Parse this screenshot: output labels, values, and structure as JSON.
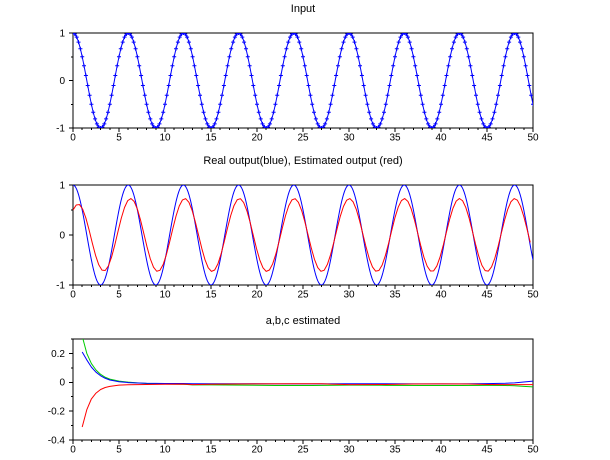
{
  "window": {
    "background": "#ffffff",
    "frame_color": "#000000",
    "text_color": "#000000"
  },
  "chart_data": [
    {
      "type": "line",
      "title": "Input",
      "xlabel": "",
      "ylabel": "",
      "xlim": [
        0,
        50
      ],
      "ylim": [
        -1,
        1
      ],
      "xticks": [
        0,
        5,
        10,
        15,
        20,
        25,
        30,
        35,
        40,
        45,
        50
      ],
      "yticks": [
        1,
        0,
        -1
      ],
      "x_minor_step": 1,
      "y_minor_step": 0.5,
      "grid": false,
      "legend": "none",
      "series": [
        {
          "name": "input-signal",
          "color": "#0000ff",
          "line_width": 1,
          "marker": "+",
          "marker_step": 0.2,
          "sample_step": 0.1,
          "model": {
            "kind": "cosine",
            "amplitude": 1,
            "period": 6,
            "phase": 0,
            "offset": 0
          },
          "description": "cosine wave, amplitude 1, period 6, plotted with dense + markers"
        }
      ]
    },
    {
      "type": "line",
      "title": "Real output(blue), Estimated output (red)",
      "xlabel": "",
      "ylabel": "",
      "xlim": [
        0,
        50
      ],
      "ylim": [
        -1,
        1
      ],
      "xticks": [
        0,
        5,
        10,
        15,
        20,
        25,
        30,
        35,
        40,
        45,
        50
      ],
      "yticks": [
        1,
        0,
        -1
      ],
      "x_minor_step": 1,
      "y_minor_step": 0.5,
      "grid": false,
      "legend": "none",
      "series": [
        {
          "name": "real-output",
          "color": "#0000ff",
          "line_width": 1,
          "marker": "none",
          "sample_step": 0.1,
          "model": {
            "kind": "cosine",
            "amplitude": 1,
            "period": 6,
            "phase": 0,
            "offset": 0
          },
          "description": "real output: cosine, amplitude 1, period 6"
        },
        {
          "name": "estimated-output",
          "color": "#ff0000",
          "line_width": 1,
          "marker": "none",
          "sample_step": 0.35,
          "model": {
            "kind": "transient-cosine",
            "A": 0.73,
            "B": 0.17,
            "tau_amp": 1.2,
            "L": 0.45,
            "tau_lag": 12,
            "period": 6
          },
          "description": "estimated output: starts at 0.5, converges to cosine of amplitude 0.73 with small decaying phase lag"
        }
      ]
    },
    {
      "type": "line",
      "title": "a,b,c estimated",
      "xlabel": "",
      "ylabel": "",
      "xlim": [
        0,
        50
      ],
      "ylim": [
        -0.4,
        0.3
      ],
      "xticks": [
        0,
        5,
        10,
        15,
        20,
        25,
        30,
        35,
        40,
        45,
        50
      ],
      "yticks": [
        0.2,
        0,
        -0.2,
        -0.4
      ],
      "x_minor_step": 1,
      "y_minor_step": 0.1,
      "grid": false,
      "legend": "none",
      "series": [
        {
          "name": "estimate-green",
          "color": "#00cc00",
          "line_width": 1,
          "marker": "none",
          "points": [
            [
              1,
              0.32
            ],
            [
              1.5,
              0.2
            ],
            [
              2,
              0.13
            ],
            [
              2.5,
              0.085
            ],
            [
              3,
              0.055
            ],
            [
              3.5,
              0.035
            ],
            [
              4,
              0.022
            ],
            [
              5,
              0.008
            ],
            [
              6,
              0.001
            ],
            [
              7,
              -0.004
            ],
            [
              8,
              -0.008
            ],
            [
              10,
              -0.012
            ],
            [
              12,
              -0.014
            ],
            [
              13,
              -0.018
            ],
            [
              15,
              -0.018
            ],
            [
              18,
              -0.02
            ],
            [
              22,
              -0.022
            ],
            [
              26,
              -0.022
            ],
            [
              30,
              -0.02
            ],
            [
              34,
              -0.021
            ],
            [
              38,
              -0.022
            ],
            [
              42,
              -0.022
            ],
            [
              45,
              -0.021
            ],
            [
              47,
              -0.022
            ],
            [
              48,
              -0.024
            ],
            [
              49,
              -0.028
            ],
            [
              50,
              -0.032
            ]
          ],
          "description": "parameter estimate starting near 0.3 and converging to about -0.02"
        },
        {
          "name": "estimate-blue",
          "color": "#0000ff",
          "line_width": 1,
          "marker": "none",
          "points": [
            [
              1,
              0.21
            ],
            [
              1.5,
              0.155
            ],
            [
              2,
              0.105
            ],
            [
              2.5,
              0.07
            ],
            [
              3,
              0.045
            ],
            [
              3.5,
              0.028
            ],
            [
              4,
              0.016
            ],
            [
              5,
              0.004
            ],
            [
              6,
              -0.002
            ],
            [
              7,
              -0.005
            ],
            [
              8,
              -0.007
            ],
            [
              10,
              -0.008
            ],
            [
              12,
              -0.008
            ],
            [
              13,
              -0.01
            ],
            [
              15,
              -0.01
            ],
            [
              18,
              -0.01
            ],
            [
              22,
              -0.011
            ],
            [
              26,
              -0.011
            ],
            [
              30,
              -0.01
            ],
            [
              34,
              -0.01
            ],
            [
              38,
              -0.011
            ],
            [
              42,
              -0.011
            ],
            [
              45,
              -0.009
            ],
            [
              47,
              -0.007
            ],
            [
              48,
              -0.004
            ],
            [
              49,
              0.002
            ],
            [
              50,
              0.008
            ]
          ],
          "description": "parameter estimate starting near 0.21 and converging to about -0.01"
        },
        {
          "name": "estimate-red",
          "color": "#ff0000",
          "line_width": 1,
          "marker": "none",
          "points": [
            [
              1,
              -0.31
            ],
            [
              1.5,
              -0.19
            ],
            [
              2,
              -0.115
            ],
            [
              2.5,
              -0.075
            ],
            [
              3,
              -0.05
            ],
            [
              3.5,
              -0.036
            ],
            [
              4,
              -0.028
            ],
            [
              5,
              -0.02
            ],
            [
              6,
              -0.017
            ],
            [
              7,
              -0.016
            ],
            [
              8,
              -0.015
            ],
            [
              10,
              -0.014
            ],
            [
              12,
              -0.013
            ],
            [
              13,
              -0.016
            ],
            [
              15,
              -0.014
            ],
            [
              18,
              -0.012
            ],
            [
              20,
              -0.011
            ],
            [
              24,
              -0.01
            ],
            [
              27,
              -0.01
            ],
            [
              28,
              -0.013
            ],
            [
              30,
              -0.016
            ],
            [
              34,
              -0.015
            ],
            [
              37,
              -0.012
            ],
            [
              40,
              -0.011
            ],
            [
              43,
              -0.012
            ],
            [
              45,
              -0.015
            ],
            [
              47,
              -0.016
            ],
            [
              48,
              -0.016
            ],
            [
              49,
              -0.016
            ],
            [
              50,
              -0.016
            ]
          ],
          "description": "parameter estimate starting near -0.31 and converging to about -0.015"
        }
      ]
    }
  ]
}
